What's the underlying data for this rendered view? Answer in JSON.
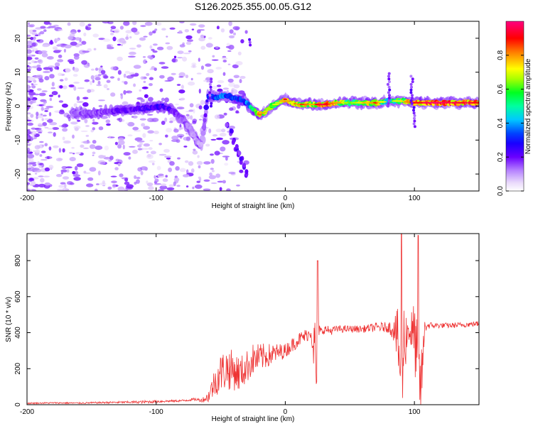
{
  "title": "S126.2025.355.00.05.G12",
  "chart_data": [
    {
      "type": "heatmap",
      "name": "spectrogram",
      "xlabel": "Height of straight line (km)",
      "ylabel": "Frequency (Hz)",
      "xlim": [
        -200,
        150
      ],
      "ylim": [
        -25,
        25
      ],
      "xticks": [
        -200,
        -100,
        0,
        100
      ],
      "xtick_labels": [
        "-200",
        "-100",
        "0",
        "100"
      ],
      "yticks": [
        -20,
        -10,
        0,
        10,
        20
      ],
      "ytick_labels": [
        "-20",
        "-10",
        "0",
        "10",
        "20"
      ],
      "colorbar": {
        "label": "Normalized spectral amplitude",
        "range": [
          0,
          1
        ],
        "ticks": [
          0.0,
          0.2,
          0.4,
          0.6,
          0.8
        ],
        "tick_labels": [
          "0.0",
          "0.2",
          "0.4",
          "0.6",
          "0.8"
        ]
      },
      "ridge": {
        "x": [
          -165,
          -150,
          -135,
          -120,
          -105,
          -95,
          -85,
          -80,
          -75,
          -70,
          -65,
          -60,
          -55,
          -50,
          -45,
          -40,
          -35,
          -30,
          -25,
          -20,
          -15,
          -10,
          -5,
          0,
          5,
          10,
          15,
          20,
          30,
          40,
          50,
          60,
          70,
          80,
          90,
          100,
          110,
          120,
          130,
          140,
          150
        ],
        "y": [
          -2,
          -2,
          -1.5,
          -1,
          -0.5,
          0,
          -2,
          -4,
          -6,
          -9,
          -12,
          3,
          2.5,
          3,
          3,
          2.5,
          2,
          1,
          -1,
          -2.5,
          -1.5,
          0,
          1,
          2,
          1,
          0.5,
          0.5,
          0.5,
          0.5,
          1,
          1,
          1,
          1,
          1.5,
          1.5,
          1,
          1,
          1,
          1,
          1,
          1
        ],
        "amplitude": [
          0.15,
          0.18,
          0.2,
          0.22,
          0.25,
          0.28,
          0.2,
          0.18,
          0.15,
          0.12,
          0.1,
          0.3,
          0.35,
          0.4,
          0.38,
          0.35,
          0.35,
          0.4,
          0.55,
          0.8,
          0.7,
          0.6,
          0.6,
          0.85,
          0.7,
          0.75,
          0.8,
          0.7,
          0.9,
          0.75,
          0.6,
          0.7,
          0.8,
          0.5,
          0.7,
          0.85,
          0.95,
          0.9,
          0.95,
          0.9,
          0.85
        ]
      },
      "branch": {
        "x": [
          -45,
          -42,
          -40,
          -38,
          -36,
          -34,
          -32,
          -30
        ],
        "y": [
          -5,
          -8,
          -10,
          -12,
          -14,
          -16,
          -18,
          -20
        ]
      },
      "spikes": [
        {
          "x": -58,
          "y_from": 0,
          "y_to": 8
        },
        {
          "x": 80,
          "y_from": 0,
          "y_to": 10
        },
        {
          "x": 98,
          "y_from": 0,
          "y_to": 9
        },
        {
          "x": 100,
          "y_from": -6,
          "y_to": 0
        },
        {
          "x": -27,
          "y_from": 18,
          "y_to": 20
        }
      ]
    },
    {
      "type": "line",
      "name": "snr",
      "xlabel": "Height of straight line (km)",
      "ylabel": "SNR (10 * v/v)",
      "xlim": [
        -200,
        150
      ],
      "ylim": [
        0,
        950
      ],
      "xticks": [
        -200,
        -100,
        0,
        100
      ],
      "xtick_labels": [
        "-200",
        "-100",
        "0",
        "100"
      ],
      "yticks": [
        0,
        200,
        400,
        600,
        800
      ],
      "ytick_labels": [
        "0",
        "200",
        "400",
        "600",
        "800"
      ],
      "series": [
        {
          "name": "SNR",
          "color": "#ee3333",
          "x": [
            -200,
            -180,
            -160,
            -140,
            -120,
            -110,
            -100,
            -90,
            -80,
            -70,
            -65,
            -60,
            -55,
            -50,
            -45,
            -40,
            -35,
            -30,
            -25,
            -20,
            -15,
            -10,
            -5,
            0,
            5,
            10,
            15,
            20,
            23,
            24,
            25,
            26,
            28,
            30,
            35,
            40,
            50,
            60,
            70,
            80,
            85,
            88,
            90,
            92,
            95,
            100,
            105,
            108,
            110,
            120,
            130,
            140,
            150
          ],
          "y": [
            8,
            10,
            9,
            12,
            14,
            15,
            18,
            20,
            22,
            30,
            25,
            40,
            120,
            180,
            200,
            190,
            170,
            210,
            250,
            260,
            270,
            280,
            290,
            300,
            330,
            360,
            380,
            400,
            300,
            100,
            350,
            420,
            400,
            420,
            410,
            420,
            420,
            420,
            430,
            430,
            420,
            300,
            100,
            350,
            420,
            380,
            80,
            430,
            440,
            440,
            440,
            445,
            450
          ],
          "noise_amplitude": [
            4,
            4,
            4,
            5,
            6,
            8,
            8,
            6,
            6,
            8,
            10,
            30,
            80,
            110,
            120,
            110,
            100,
            90,
            90,
            80,
            70,
            60,
            50,
            40,
            40,
            40,
            40,
            30,
            200,
            150,
            200,
            40,
            30,
            25,
            25,
            20,
            20,
            20,
            25,
            30,
            80,
            250,
            200,
            250,
            60,
            200,
            200,
            40,
            20,
            15,
            15,
            15,
            15
          ],
          "peaks": [
            {
              "x": 25,
              "y": 800
            },
            {
              "x": 90,
              "y": 950
            },
            {
              "x": 103,
              "y": 940
            }
          ]
        }
      ]
    }
  ]
}
